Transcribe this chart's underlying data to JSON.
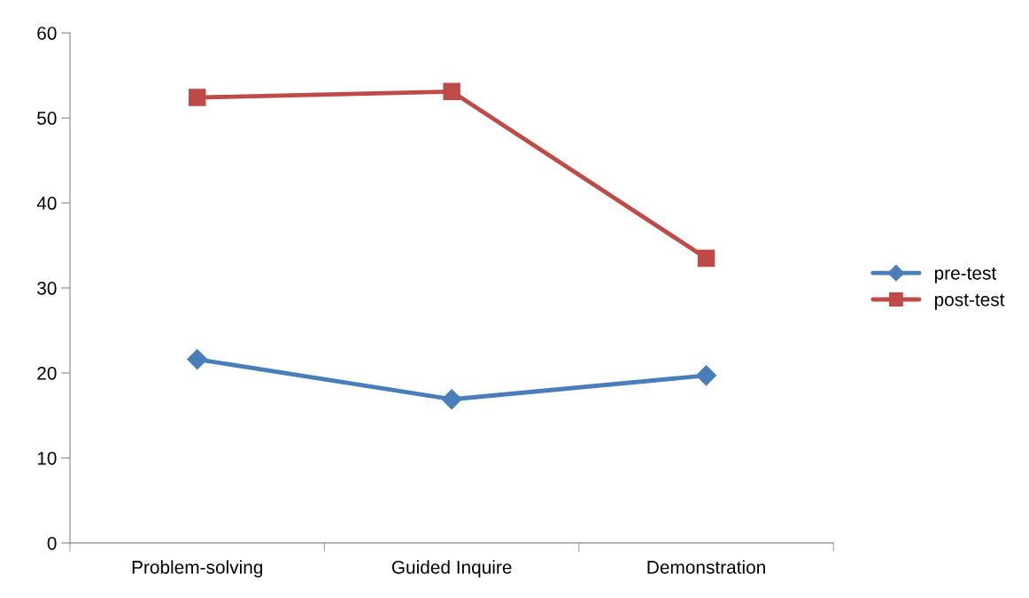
{
  "chart_data": {
    "type": "line",
    "categories": [
      "Problem-solving",
      "Guided Inquire",
      "Demonstration"
    ],
    "series": [
      {
        "name": "pre-test",
        "color": "#4a7ebb",
        "values": [
          21.6,
          16.9,
          19.7
        ],
        "marker": "diamond"
      },
      {
        "name": "post-test",
        "color": "#be4b48",
        "values": [
          52.4,
          53.1,
          33.5
        ],
        "marker": "square"
      }
    ],
    "ylim": [
      0,
      60
    ],
    "yticks": [
      0,
      10,
      20,
      30,
      40,
      50,
      60
    ],
    "grid": false,
    "legend": "right",
    "line_style": "solid"
  }
}
